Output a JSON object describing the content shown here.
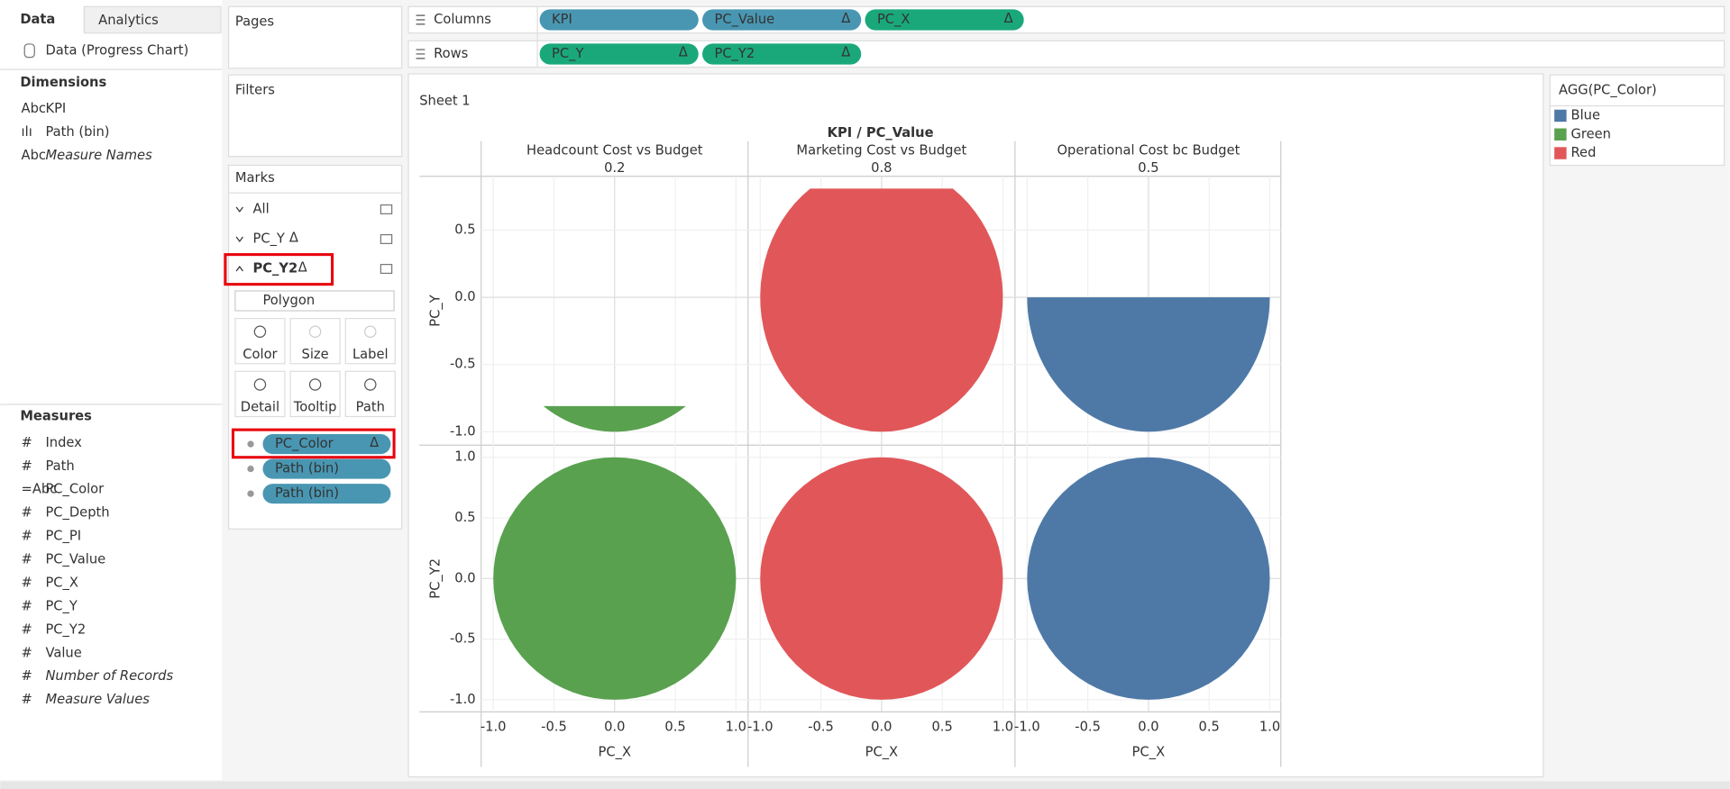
{
  "data_pane": {
    "tabs": [
      "Data",
      "Analytics"
    ],
    "source": "Data (Progress Chart)",
    "dimensions_title": "Dimensions",
    "dimensions": [
      {
        "icon": "Abc",
        "name": "KPI"
      },
      {
        "icon": "ılı",
        "name": "Path (bin)"
      },
      {
        "icon": "Abc",
        "name": "Measure Names",
        "italic": true
      }
    ],
    "measures_title": "Measures",
    "measures": [
      {
        "icon": "#",
        "name": "Index"
      },
      {
        "icon": "#",
        "name": "Path"
      },
      {
        "icon": "=Abc",
        "name": "PC_Color"
      },
      {
        "icon": "#",
        "name": "PC_Depth"
      },
      {
        "icon": "#",
        "name": "PC_PI"
      },
      {
        "icon": "#",
        "name": "PC_Value"
      },
      {
        "icon": "#",
        "name": "PC_X"
      },
      {
        "icon": "#",
        "name": "PC_Y"
      },
      {
        "icon": "#",
        "name": "PC_Y2"
      },
      {
        "icon": "#",
        "name": "Value"
      },
      {
        "icon": "#",
        "name": "Number of Records",
        "italic": true
      },
      {
        "icon": "#",
        "name": "Measure Values",
        "italic": true
      }
    ]
  },
  "pages": "Pages",
  "filters": "Filters",
  "marks": {
    "title": "Marks",
    "cards": [
      {
        "name": "All"
      },
      {
        "name": "PC_Y",
        "suffix": "Δ"
      },
      {
        "name": "PC_Y2",
        "suffix": "Δ",
        "active": true
      }
    ],
    "mark_type": "Polygon",
    "buttons": [
      {
        "label": "Color",
        "enabled": true
      },
      {
        "label": "Size",
        "enabled": false
      },
      {
        "label": "Label",
        "enabled": false
      },
      {
        "label": "Detail",
        "enabled": true
      },
      {
        "label": "Tooltip",
        "enabled": true
      },
      {
        "label": "Path",
        "enabled": true
      }
    ],
    "pills": [
      {
        "name": "PC_Color",
        "suffix": "Δ",
        "highlight": true
      },
      {
        "name": "Path (bin)"
      },
      {
        "name": "Path (bin)"
      }
    ]
  },
  "columns_shelf": {
    "label": "Columns",
    "pills": [
      {
        "name": "KPI",
        "kind": "dimension"
      },
      {
        "name": "PC_Value",
        "suffix": "Δ",
        "kind": "dimension"
      },
      {
        "name": "PC_X",
        "suffix": "Δ",
        "kind": "measure"
      }
    ]
  },
  "rows_shelf": {
    "label": "Rows",
    "pills": [
      {
        "name": "PC_Y",
        "suffix": "Δ",
        "kind": "measure"
      },
      {
        "name": "PC_Y2",
        "suffix": "Δ",
        "kind": "measure"
      }
    ]
  },
  "sheet": {
    "title": "Sheet 1",
    "header": "KPI / PC_Value",
    "columns": [
      {
        "kpi": "Headcount Cost vs Budget",
        "value": 0.2,
        "color": "#59a14f"
      },
      {
        "kpi": "Marketing Cost vs Budget",
        "value": 0.8,
        "color": "#e15759"
      },
      {
        "kpi": "Operational Cost bc Budget",
        "value": 0.5,
        "color": "#4e79a7"
      }
    ],
    "rows": [
      {
        "title": "PC_Y",
        "ylim": [
          -1.1,
          0.9
        ],
        "yticks": [
          0.5,
          {
            "value": 0,
            "label": "0.0"
          },
          -0.5,
          {
            "value": -1,
            "label": "-1.0"
          }
        ]
      },
      {
        "title": "PC_Y2",
        "ylim": [
          -1.1,
          1.1
        ],
        "yticks": [
          {
            "value": 1,
            "label": "1.0"
          },
          0.5,
          {
            "value": 0,
            "label": "0.0"
          },
          -0.5,
          {
            "value": -1,
            "label": "-1.0"
          }
        ]
      }
    ],
    "x_axis": {
      "title": "PC_X",
      "xlim": [
        -1.1,
        1.1
      ],
      "xticks": [
        {
          "value": -1,
          "label": "-1.0"
        },
        -0.5,
        {
          "value": 0,
          "label": "0.0"
        },
        0.5,
        {
          "value": 1,
          "label": "1.0"
        }
      ]
    }
  },
  "legend": {
    "title": "AGG(PC_Color)",
    "items": [
      {
        "name": "Blue",
        "color": "#4e79a7"
      },
      {
        "name": "Green",
        "color": "#59a14f"
      },
      {
        "name": "Red",
        "color": "#e15759"
      }
    ]
  }
}
